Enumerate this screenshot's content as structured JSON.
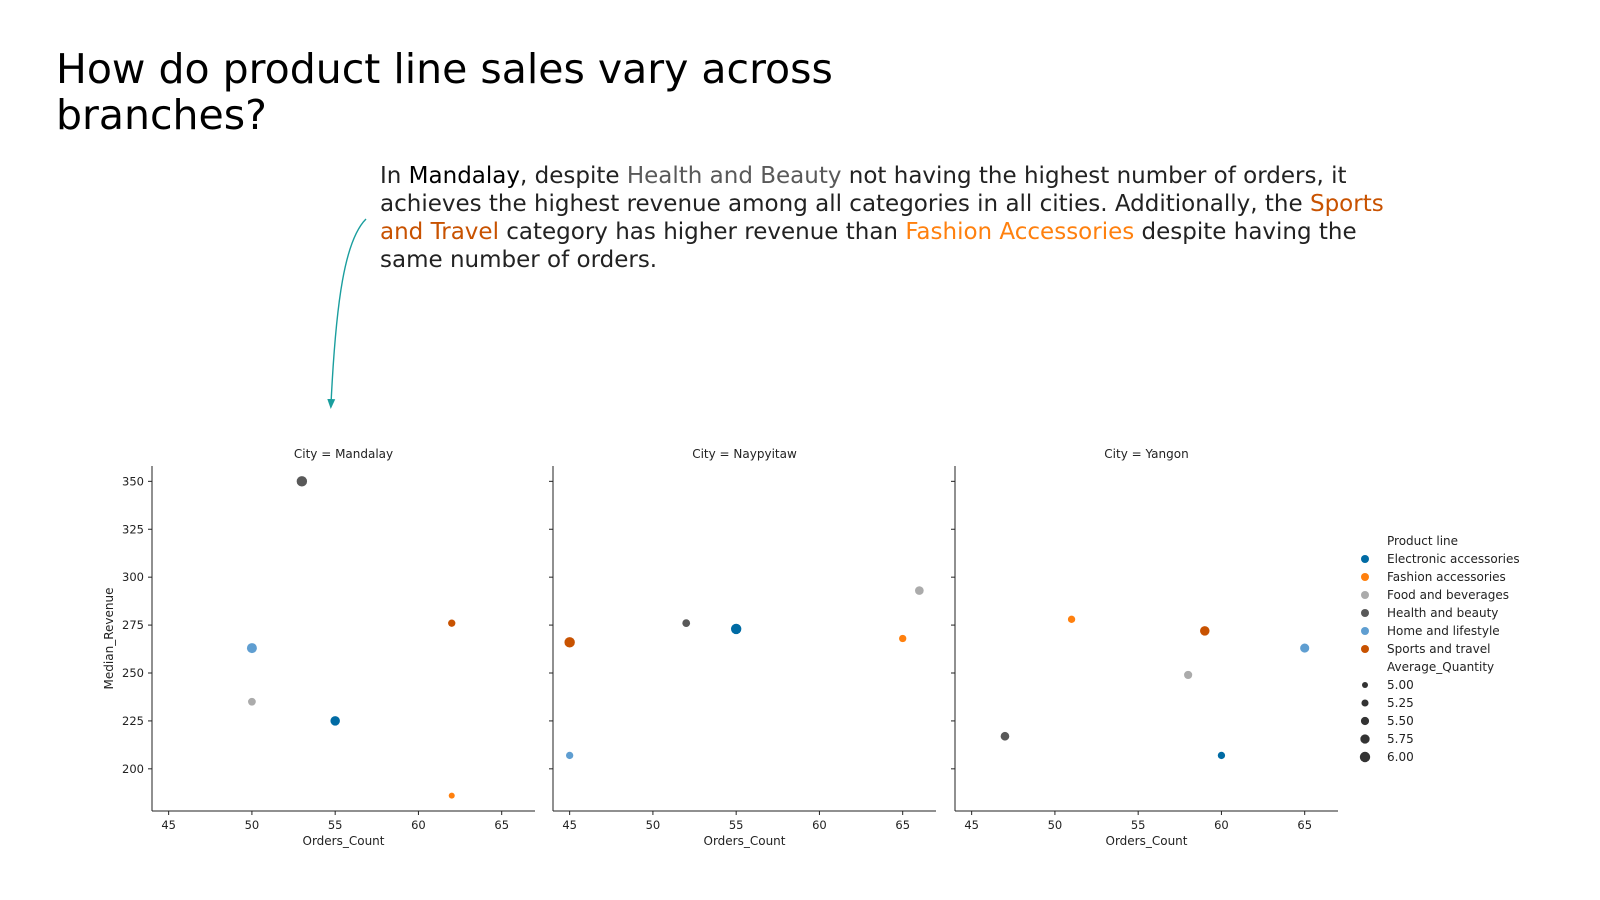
{
  "title": "How do product line sales vary across branches?",
  "annotation": {
    "t1": "In ",
    "city": "Mandalay",
    "t2": ", despite ",
    "cat1": "Health and Beauty",
    "t3": " not having the highest number of orders, it achieves the highest revenue among all categories in all cities. Additionally, the ",
    "cat2": "Sports and Travel",
    "t4": " category has higher revenue than ",
    "cat3": "Fashion Accessories",
    "t5": " despite having the same number of orders.",
    "colors": {
      "city": "#000000",
      "cat1": "#595959",
      "cat2": "#c85200",
      "cat3": "#ff800e",
      "arrow": "#1a9e9e"
    }
  },
  "chart_data": {
    "type": "scatter",
    "facet_prefix": "City = ",
    "facets": [
      "Mandalay",
      "Naypyitaw",
      "Yangon"
    ],
    "xlabel": "Orders_Count",
    "ylabel": "Median_Revenue",
    "xlim": [
      44,
      67
    ],
    "ylim": [
      178,
      358
    ],
    "xticks": [
      45,
      50,
      55,
      60,
      65
    ],
    "yticks": [
      200,
      225,
      250,
      275,
      300,
      325,
      350
    ],
    "grid": false,
    "legend_position": "right",
    "hue_title": "Product line",
    "hue": [
      {
        "name": "Electronic accessories",
        "color": "#006ba4"
      },
      {
        "name": "Fashion accessories",
        "color": "#ff800e"
      },
      {
        "name": "Food and beverages",
        "color": "#ababab"
      },
      {
        "name": "Health and beauty",
        "color": "#595959"
      },
      {
        "name": "Home and lifestyle",
        "color": "#5f9ed1"
      },
      {
        "name": "Sports and travel",
        "color": "#c85200"
      }
    ],
    "size_title": "Average_Quantity",
    "size_levels": [
      "5.00",
      "5.25",
      "5.50",
      "5.75",
      "6.00"
    ],
    "points": [
      {
        "city": "Mandalay",
        "line": "Electronic accessories",
        "x": 55,
        "y": 225,
        "q": 5.8
      },
      {
        "city": "Mandalay",
        "line": "Fashion accessories",
        "x": 62,
        "y": 186,
        "q": 5.0
      },
      {
        "city": "Mandalay",
        "line": "Food and beverages",
        "x": 50,
        "y": 235,
        "q": 5.4
      },
      {
        "city": "Mandalay",
        "line": "Health and beauty",
        "x": 53,
        "y": 350,
        "q": 6.0
      },
      {
        "city": "Mandalay",
        "line": "Home and lifestyle",
        "x": 50,
        "y": 263,
        "q": 5.9
      },
      {
        "city": "Mandalay",
        "line": "Sports and travel",
        "x": 62,
        "y": 276,
        "q": 5.3
      },
      {
        "city": "Naypyitaw",
        "line": "Electronic accessories",
        "x": 55,
        "y": 273,
        "q": 6.0
      },
      {
        "city": "Naypyitaw",
        "line": "Fashion accessories",
        "x": 65,
        "y": 268,
        "q": 5.3
      },
      {
        "city": "Naypyitaw",
        "line": "Food and beverages",
        "x": 66,
        "y": 293,
        "q": 5.6
      },
      {
        "city": "Naypyitaw",
        "line": "Health and beauty",
        "x": 52,
        "y": 276,
        "q": 5.4
      },
      {
        "city": "Naypyitaw",
        "line": "Home and lifestyle",
        "x": 45,
        "y": 207,
        "q": 5.3
      },
      {
        "city": "Naypyitaw",
        "line": "Sports and travel",
        "x": 45,
        "y": 266,
        "q": 6.0
      },
      {
        "city": "Yangon",
        "line": "Electronic accessories",
        "x": 60,
        "y": 207,
        "q": 5.3
      },
      {
        "city": "Yangon",
        "line": "Fashion accessories",
        "x": 51,
        "y": 278,
        "q": 5.3
      },
      {
        "city": "Yangon",
        "line": "Food and beverages",
        "x": 58,
        "y": 249,
        "q": 5.5
      },
      {
        "city": "Yangon",
        "line": "Health and beauty",
        "x": 47,
        "y": 217,
        "q": 5.6
      },
      {
        "city": "Yangon",
        "line": "Home and lifestyle",
        "x": 65,
        "y": 263,
        "q": 5.7
      },
      {
        "city": "Yangon",
        "line": "Sports and travel",
        "x": 59,
        "y": 272,
        "q": 5.8
      }
    ]
  }
}
